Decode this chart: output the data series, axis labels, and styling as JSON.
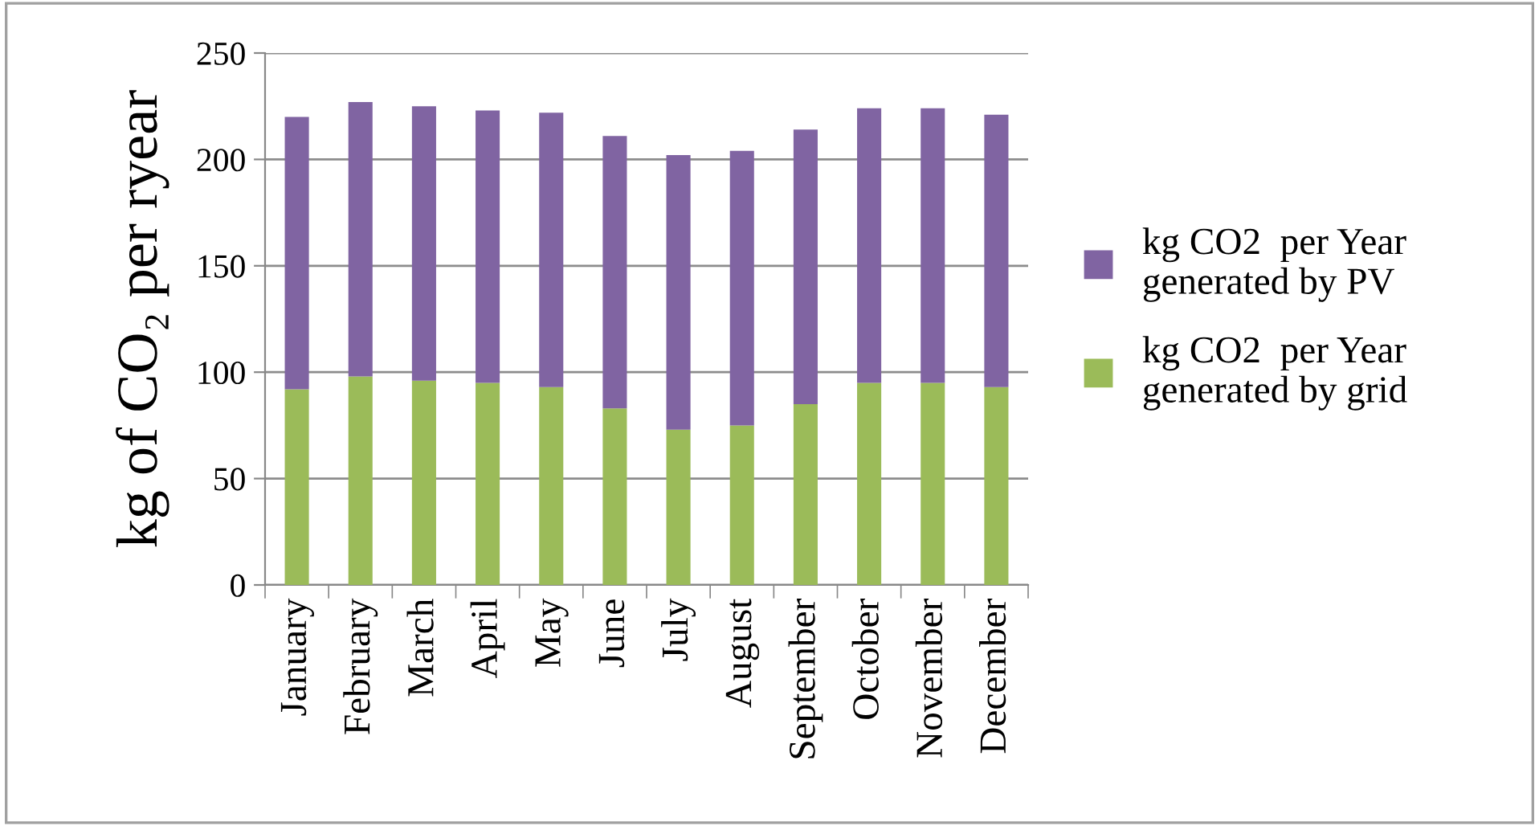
{
  "chart_data": {
    "type": "bar",
    "stacked": true,
    "ylabel": "kg of CO₂ per ryear",
    "categories": [
      "January",
      "February",
      "March",
      "April",
      "May",
      "June",
      "July",
      "August",
      "September",
      "October",
      "November",
      "December"
    ],
    "series": [
      {
        "name": "kg CO2  per Year generated by grid",
        "color": "#9bbb59",
        "values": [
          92,
          98,
          96,
          95,
          93,
          83,
          73,
          75,
          85,
          95,
          95,
          93
        ]
      },
      {
        "name": "kg CO2  per Year generated by PV",
        "color": "#8064a2",
        "values": [
          128,
          129,
          129,
          128,
          129,
          128,
          129,
          129,
          129,
          129,
          129,
          128
        ]
      }
    ],
    "ylim": [
      0,
      250
    ],
    "yticks": [
      0,
      50,
      100,
      150,
      200,
      250
    ],
    "grid": "y",
    "legend": "right"
  }
}
